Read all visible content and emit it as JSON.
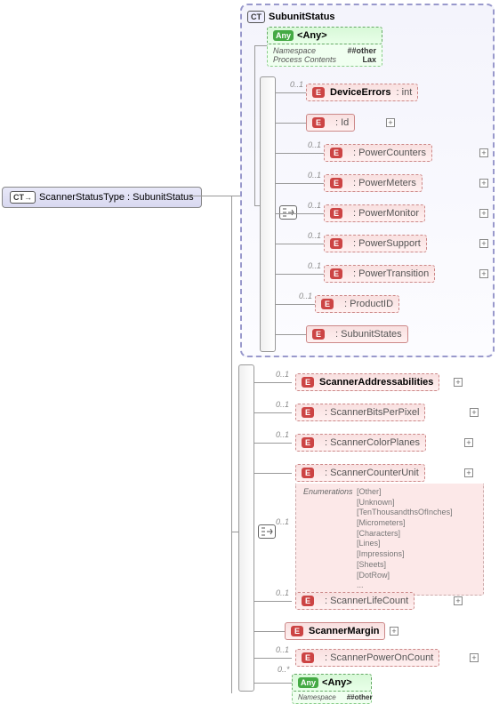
{
  "root": {
    "badge": "CT",
    "label": "ScannerStatusType : SubunitStatus"
  },
  "subunit": {
    "badge": "CT",
    "title": "SubunitStatus",
    "any": {
      "label": "<Any>",
      "namespace_k": "Namespace",
      "namespace_v": "##other",
      "process_k": "Process Contents",
      "process_v": "Lax"
    },
    "items": [
      {
        "card": "0..1",
        "label": "DeviceErrors",
        "type": ": int"
      },
      {
        "card": "",
        "label": "<Ref>",
        "type": ": Id"
      },
      {
        "card": "0..1",
        "label": "<Ref>",
        "type": ": PowerCounters"
      },
      {
        "card": "0..1",
        "label": "<Ref>",
        "type": ": PowerMeters"
      },
      {
        "card": "0..1",
        "label": "<Ref>",
        "type": ": PowerMonitor"
      },
      {
        "card": "0..1",
        "label": "<Ref>",
        "type": ": PowerSupport"
      },
      {
        "card": "0..1",
        "label": "<Ref>",
        "type": ": PowerTransition"
      },
      {
        "card": "0..1",
        "label": "<Ref>",
        "type": ": ProductID"
      },
      {
        "card": "",
        "label": "<Ref>",
        "type": ": SubunitStates"
      }
    ]
  },
  "lower": {
    "items": [
      {
        "card": "0..1",
        "label": "ScannerAddressabilities",
        "type": ""
      },
      {
        "card": "0..1",
        "label": "<Ref>",
        "type": ": ScannerBitsPerPixel"
      },
      {
        "card": "0..1",
        "label": "<Ref>",
        "type": ": ScannerColorPlanes"
      },
      {
        "card": "",
        "label": "<Ref>",
        "type": ": ScannerCounterUnit"
      },
      {
        "card": "0..1",
        "label": "<Ref>",
        "type": ": ScannerLifeCount"
      },
      {
        "card": "",
        "label": "ScannerMargin",
        "type": ""
      },
      {
        "card": "0..1",
        "label": "<Ref>",
        "type": ": ScannerPowerOnCount"
      }
    ],
    "counter_enum_card": "0..1",
    "counter_enum": {
      "header": "Enumerations",
      "values": [
        "[Other]",
        "[Unknown]",
        "[TenThousandthsOfInches]",
        "[Micrometers]",
        "[Characters]",
        "[Lines]",
        "[Impressions]",
        "[Sheets]",
        "[DotRow]",
        "..."
      ]
    },
    "any": {
      "card": "0..*",
      "label": "<Any>",
      "namespace_k": "Namespace",
      "namespace_v": "##other"
    }
  },
  "style": {
    "colors": {
      "purple_border": "#9999cc",
      "e_bg": "#f8e0e0",
      "e_border": "#c88",
      "any_bg": "#d8f8d8",
      "line": "#999"
    }
  }
}
